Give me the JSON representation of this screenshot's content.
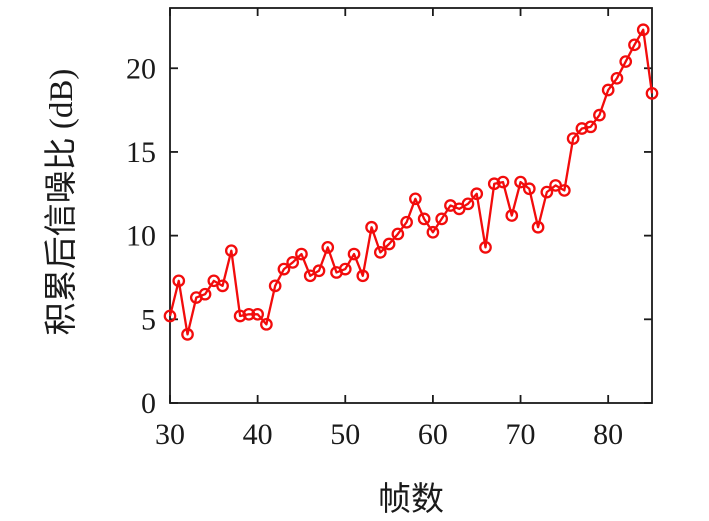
{
  "figure": {
    "background": "#ffffff",
    "axis_color": "#1a1a1a",
    "series_color": "#f20c0c"
  },
  "chart_data": {
    "type": "line",
    "title": "",
    "xlabel": "帧数",
    "ylabel": "积累后信噪比 (dB)",
    "xlim": [
      30,
      85
    ],
    "ylim": [
      0,
      23.6
    ],
    "xticks": [
      30,
      40,
      50,
      60,
      70,
      80
    ],
    "yticks": [
      0,
      5,
      10,
      15,
      20
    ],
    "grid": false,
    "legend_position": "none",
    "series": [
      {
        "name": "积累后信噪比",
        "color": "#f20c0c",
        "marker": "open-circle",
        "x": [
          30,
          31,
          32,
          33,
          34,
          35,
          36,
          37,
          38,
          39,
          40,
          41,
          42,
          43,
          44,
          45,
          46,
          47,
          48,
          49,
          50,
          51,
          52,
          53,
          54,
          55,
          56,
          57,
          58,
          59,
          60,
          61,
          62,
          63,
          64,
          65,
          66,
          67,
          68,
          69,
          70,
          71,
          72,
          73,
          74,
          75,
          76,
          77,
          78,
          79,
          80,
          81,
          82,
          83,
          84,
          85
        ],
        "y": [
          5.2,
          7.3,
          4.1,
          6.3,
          6.5,
          7.3,
          7.0,
          9.1,
          5.2,
          5.3,
          5.3,
          4.7,
          7.0,
          8.0,
          8.4,
          8.9,
          7.6,
          7.9,
          9.3,
          7.8,
          8.0,
          8.9,
          7.6,
          10.5,
          9.0,
          9.5,
          10.1,
          10.8,
          12.2,
          11.0,
          10.2,
          11.0,
          11.8,
          11.6,
          11.9,
          12.5,
          9.3,
          13.1,
          13.2,
          11.2,
          13.2,
          12.8,
          10.5,
          12.6,
          13.0,
          12.7,
          15.8,
          16.4,
          16.5,
          17.2,
          18.7,
          19.4,
          20.4,
          21.4,
          22.3,
          18.5
        ]
      }
    ]
  }
}
